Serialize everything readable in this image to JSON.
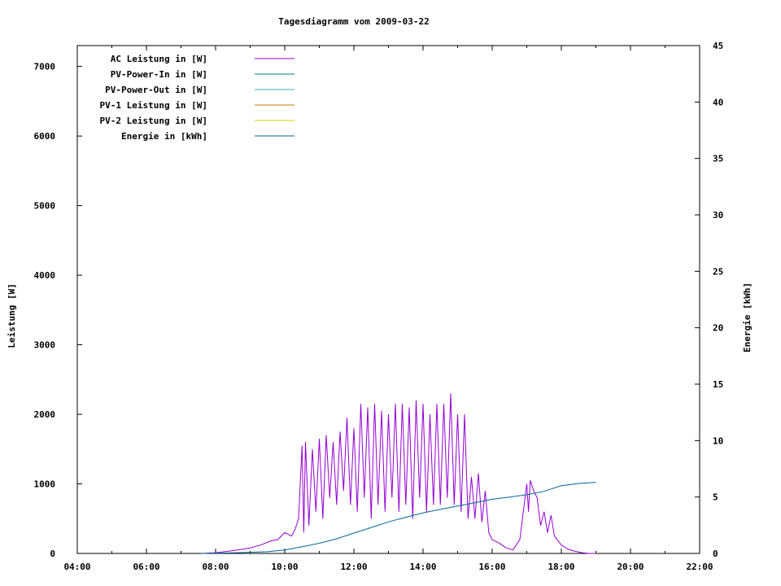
{
  "chart_data": {
    "type": "line",
    "title": "Tagesdiagramm vom 2009-03-22",
    "xlabel": "",
    "ylabel": "Leistung [W]",
    "y2label": "Energie [kWh]",
    "x_ticks": [
      "04:00",
      "06:00",
      "08:00",
      "10:00",
      "12:00",
      "14:00",
      "16:00",
      "18:00",
      "20:00",
      "22:00"
    ],
    "xlim": [
      4,
      22
    ],
    "ylim": [
      0,
      7300
    ],
    "y2lim": [
      0,
      45
    ],
    "y_ticks": [
      0,
      1000,
      2000,
      3000,
      4000,
      5000,
      6000,
      7000
    ],
    "y2_ticks": [
      0,
      5,
      10,
      15,
      20,
      25,
      30,
      35,
      40,
      45
    ],
    "legend_position": "top-left",
    "grid": false,
    "series": [
      {
        "name": "AC Leistung in [W]",
        "axis": "left",
        "color": "#9400d3",
        "x": [
          7.6,
          8.0,
          8.5,
          9.0,
          9.3,
          9.6,
          9.8,
          10.0,
          10.2,
          10.3,
          10.4,
          10.5,
          10.55,
          10.6,
          10.7,
          10.8,
          10.9,
          11.0,
          11.1,
          11.2,
          11.3,
          11.4,
          11.5,
          11.6,
          11.7,
          11.8,
          11.9,
          12.0,
          12.1,
          12.2,
          12.3,
          12.4,
          12.5,
          12.6,
          12.7,
          12.8,
          12.9,
          13.0,
          13.1,
          13.2,
          13.3,
          13.4,
          13.5,
          13.6,
          13.7,
          13.8,
          13.9,
          14.0,
          14.1,
          14.2,
          14.3,
          14.4,
          14.5,
          14.6,
          14.7,
          14.8,
          14.9,
          15.0,
          15.1,
          15.2,
          15.3,
          15.4,
          15.5,
          15.6,
          15.7,
          15.8,
          15.9,
          16.0,
          16.2,
          16.4,
          16.6,
          16.8,
          17.0,
          17.05,
          17.1,
          17.2,
          17.3,
          17.4,
          17.5,
          17.6,
          17.7,
          17.8,
          18.0,
          18.2,
          18.4,
          18.6,
          18.8,
          19.0
        ],
        "y": [
          0,
          10,
          40,
          80,
          120,
          180,
          200,
          300,
          250,
          350,
          500,
          1550,
          300,
          1600,
          400,
          1500,
          600,
          1650,
          500,
          1700,
          800,
          1600,
          700,
          1750,
          900,
          1950,
          700,
          1800,
          600,
          2150,
          800,
          2100,
          500,
          2150,
          700,
          2050,
          600,
          2000,
          800,
          2150,
          600,
          2150,
          700,
          2100,
          500,
          2200,
          800,
          2150,
          600,
          2000,
          700,
          2150,
          700,
          2150,
          800,
          2300,
          700,
          2000,
          600,
          2000,
          500,
          1100,
          500,
          1150,
          450,
          900,
          300,
          200,
          150,
          80,
          50,
          200,
          1000,
          600,
          1050,
          900,
          800,
          400,
          600,
          300,
          550,
          250,
          120,
          60,
          30,
          10,
          0,
          0
        ]
      },
      {
        "name": "PV-Power-In in [W]",
        "axis": "left",
        "color": "#008080",
        "x": [],
        "y": []
      },
      {
        "name": "PV-Power-Out in [W]",
        "axis": "left",
        "color": "#3ab0c0",
        "x": [],
        "y": []
      },
      {
        "name": "PV-1 Leistung in [W]",
        "axis": "left",
        "color": "#c08000",
        "x": [],
        "y": []
      },
      {
        "name": "PV-2 Leistung in [W]",
        "axis": "left",
        "color": "#e0d000",
        "x": [],
        "y": []
      },
      {
        "name": "Energie in [kWh]",
        "axis": "right",
        "color": "#006699",
        "x": [
          7.6,
          8.5,
          9.5,
          10.0,
          10.5,
          11.0,
          11.5,
          12.0,
          12.5,
          13.0,
          13.5,
          14.0,
          14.5,
          15.0,
          15.5,
          16.0,
          16.5,
          17.0,
          17.5,
          18.0,
          18.5,
          19.0
        ],
        "y": [
          0,
          0.05,
          0.15,
          0.3,
          0.6,
          0.9,
          1.3,
          1.8,
          2.3,
          2.8,
          3.2,
          3.6,
          3.9,
          4.2,
          4.5,
          4.8,
          5.0,
          5.2,
          5.5,
          6.0,
          6.2,
          6.3
        ]
      }
    ]
  }
}
